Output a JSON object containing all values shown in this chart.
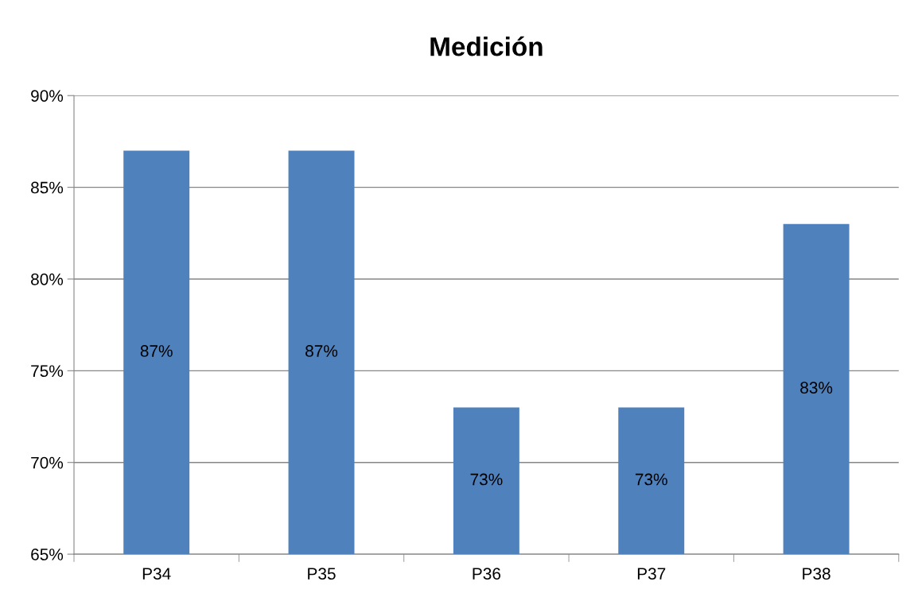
{
  "chart_data": {
    "type": "bar",
    "title": "Medición",
    "categories": [
      "P34",
      "P35",
      "P36",
      "P37",
      "P38"
    ],
    "values": [
      87,
      87,
      73,
      73,
      83
    ],
    "value_labels": [
      "87%",
      "87%",
      "73%",
      "73%",
      "83%"
    ],
    "color": "#4f81bd",
    "ylim": [
      65,
      90
    ],
    "yticks": [
      {
        "value": 65,
        "label": "65%"
      },
      {
        "value": 70,
        "label": "70%"
      },
      {
        "value": 75,
        "label": "75%"
      },
      {
        "value": 80,
        "label": "80%"
      },
      {
        "value": 85,
        "label": "85%"
      },
      {
        "value": 90,
        "label": "90%"
      }
    ],
    "grid": "y",
    "legend": false
  }
}
